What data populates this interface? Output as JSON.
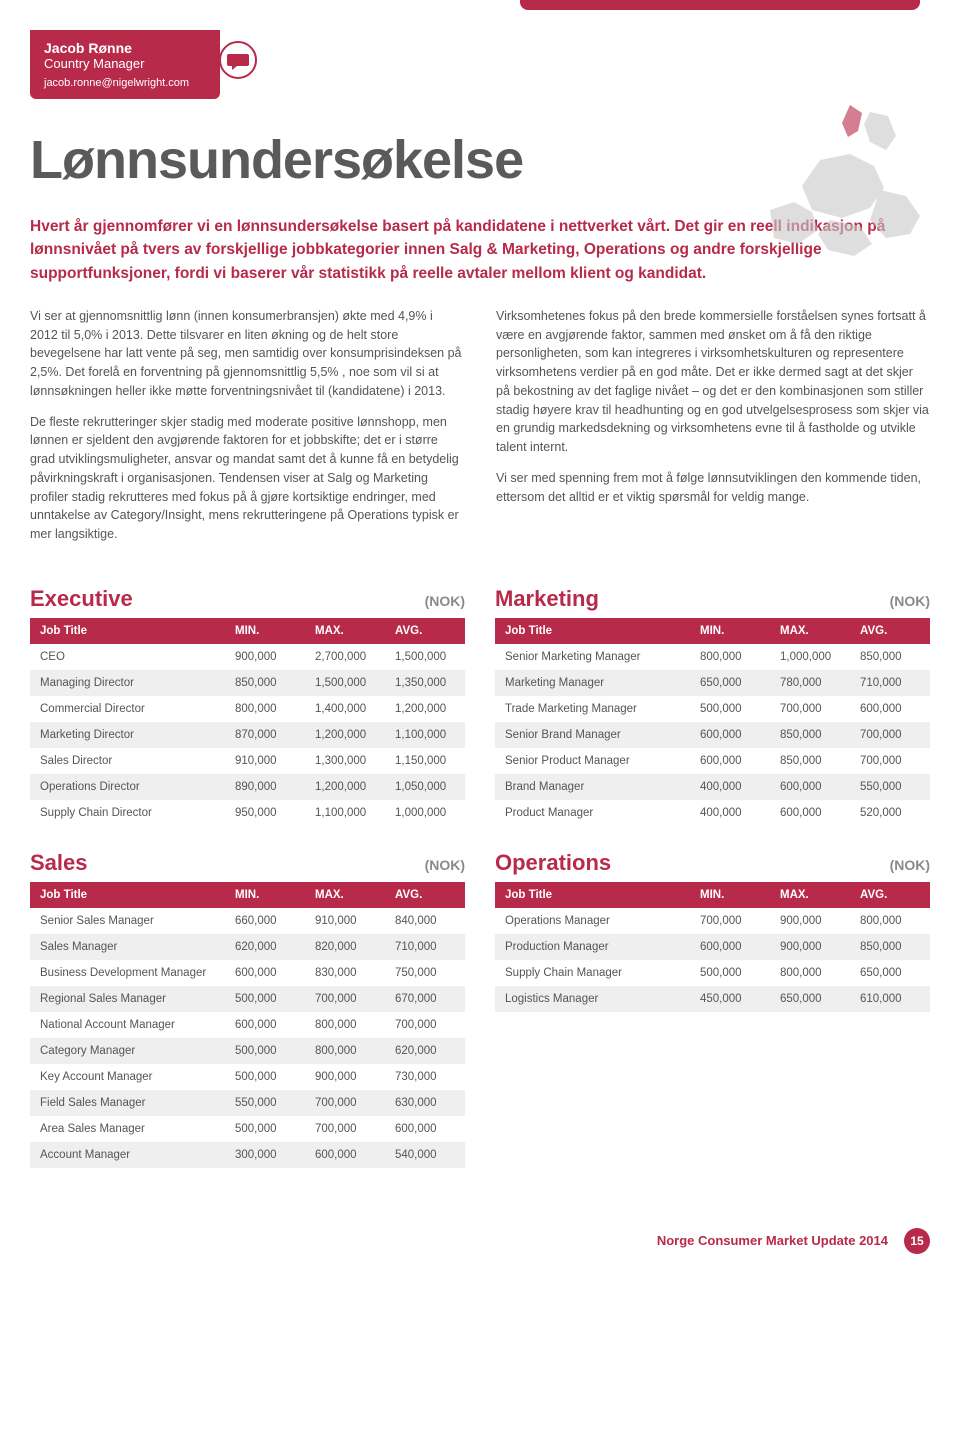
{
  "contact": {
    "name": "Jacob Rønne",
    "role": "Country Manager",
    "email": "jacob.ronne@nigelwright.com"
  },
  "title": "Lønnsundersøkelse",
  "intro": "Hvert år gjennomfører vi en lønnsundersøkelse basert på kandidatene i nettverket vårt. Det gir en reell indikasjon på lønnsnivået på tvers av forskjellige jobbkategorier innen Salg & Marketing, Operations og andre forskjellige supportfunksjoner, fordi vi baserer vår statistikk på reelle avtaler mellom klient og kandidat.",
  "body": {
    "left": [
      "Vi ser at gjennomsnittlig lønn (innen konsumerbransjen) økte med 4,9% i 2012 til 5,0% i 2013. Dette tilsvarer en liten økning og de helt store bevegelsene har latt vente på seg, men samtidig over konsumprisindeksen på 2,5%. Det forelå en forventning på gjennomsnittlig 5,5% , noe som vil si at lønnsøkningen heller ikke møtte forventningsnivået til (kandidatene) i 2013.",
      "De fleste rekrutteringer skjer stadig med moderate positive lønnshopp, men lønnen er sjeldent den avgjørende faktoren for et jobbskifte; det er i større grad utviklingsmuligheter, ansvar og mandat samt det å kunne få en betydelig påvirkningskraft i organisasjonen. Tendensen viser at Salg og Marketing profiler stadig rekrutteres med fokus på å gjøre kortsiktige endringer, med unntakelse av Category/Insight, mens rekrutteringene på Operations typisk er mer langsiktige."
    ],
    "right": [
      "Virksomhetenes fokus på den brede kommersielle forståelsen synes fortsatt å være en avgjørende faktor, sammen med ønsket om å få den riktige personligheten, som kan integreres i virksomhetskulturen og representere virksomhetens verdier på en god måte. Det er ikke dermed sagt at det skjer på bekostning av det faglige nivået – og det er den kombinasjonen som stiller stadig høyere krav til headhunting og en god utvelgelsesprosess som skjer via en grundig markedsdekning og virksomhetens evne til å fastholde og utvikle talent internt.",
      "Vi ser med spenning frem mot å følge lønnsutviklingen den kommende tiden, ettersom det alltid er et viktig spørsmål for veldig mange."
    ]
  },
  "columns": [
    "Job Title",
    "MIN.",
    "MAX.",
    "AVG."
  ],
  "currency_label": "(NOK)",
  "tables": {
    "executive": {
      "title": "Executive",
      "rows": [
        [
          "CEO",
          "900,000",
          "2,700,000",
          "1,500,000"
        ],
        [
          "Managing Director",
          "850,000",
          "1,500,000",
          "1,350,000"
        ],
        [
          "Commercial Director",
          "800,000",
          "1,400,000",
          "1,200,000"
        ],
        [
          "Marketing Director",
          "870,000",
          "1,200,000",
          "1,100,000"
        ],
        [
          "Sales Director",
          "910,000",
          "1,300,000",
          "1,150,000"
        ],
        [
          "Operations Director",
          "890,000",
          "1,200,000",
          "1,050,000"
        ],
        [
          "Supply Chain Director",
          "950,000",
          "1,100,000",
          "1,000,000"
        ]
      ]
    },
    "marketing": {
      "title": "Marketing",
      "rows": [
        [
          "Senior Marketing Manager",
          "800,000",
          "1,000,000",
          "850,000"
        ],
        [
          "Marketing Manager",
          "650,000",
          "780,000",
          "710,000"
        ],
        [
          "Trade Marketing Manager",
          "500,000",
          "700,000",
          "600,000"
        ],
        [
          "Senior Brand Manager",
          "600,000",
          "850,000",
          "700,000"
        ],
        [
          "Senior Product Manager",
          "600,000",
          "850,000",
          "700,000"
        ],
        [
          "Brand Manager",
          "400,000",
          "600,000",
          "550,000"
        ],
        [
          "Product Manager",
          "400,000",
          "600,000",
          "520,000"
        ]
      ]
    },
    "sales": {
      "title": "Sales",
      "rows": [
        [
          "Senior Sales Manager",
          "660,000",
          "910,000",
          "840,000"
        ],
        [
          "Sales Manager",
          "620,000",
          "820,000",
          "710,000"
        ],
        [
          "Business Development Manager",
          "600,000",
          "830,000",
          "750,000"
        ],
        [
          "Regional Sales Manager",
          "500,000",
          "700,000",
          "670,000"
        ],
        [
          "National Account Manager",
          "600,000",
          "800,000",
          "700,000"
        ],
        [
          "Category Manager",
          "500,000",
          "800,000",
          "620,000"
        ],
        [
          "Key Account Manager",
          "500,000",
          "900,000",
          "730,000"
        ],
        [
          "Field Sales Manager",
          "550,000",
          "700,000",
          "630,000"
        ],
        [
          "Area Sales Manager",
          "500,000",
          "700,000",
          "600,000"
        ],
        [
          "Account Manager",
          "300,000",
          "600,000",
          "540,000"
        ]
      ]
    },
    "operations": {
      "title": "Operations",
      "rows": [
        [
          "Operations Manager",
          "700,000",
          "900,000",
          "800,000"
        ],
        [
          "Production Manager",
          "600,000",
          "900,000",
          "850,000"
        ],
        [
          "Supply Chain Manager",
          "500,000",
          "800,000",
          "650,000"
        ],
        [
          "Logistics Manager",
          "450,000",
          "650,000",
          "610,000"
        ]
      ]
    }
  },
  "footer": {
    "doc_title": "Norge Consumer Market Update 2014",
    "page": "15"
  },
  "colors": {
    "accent": "#b82a4a",
    "text": "#4a4a4a",
    "row_alt": "#efefef",
    "background": "#ffffff",
    "grey_text": "#8a8a8a"
  }
}
